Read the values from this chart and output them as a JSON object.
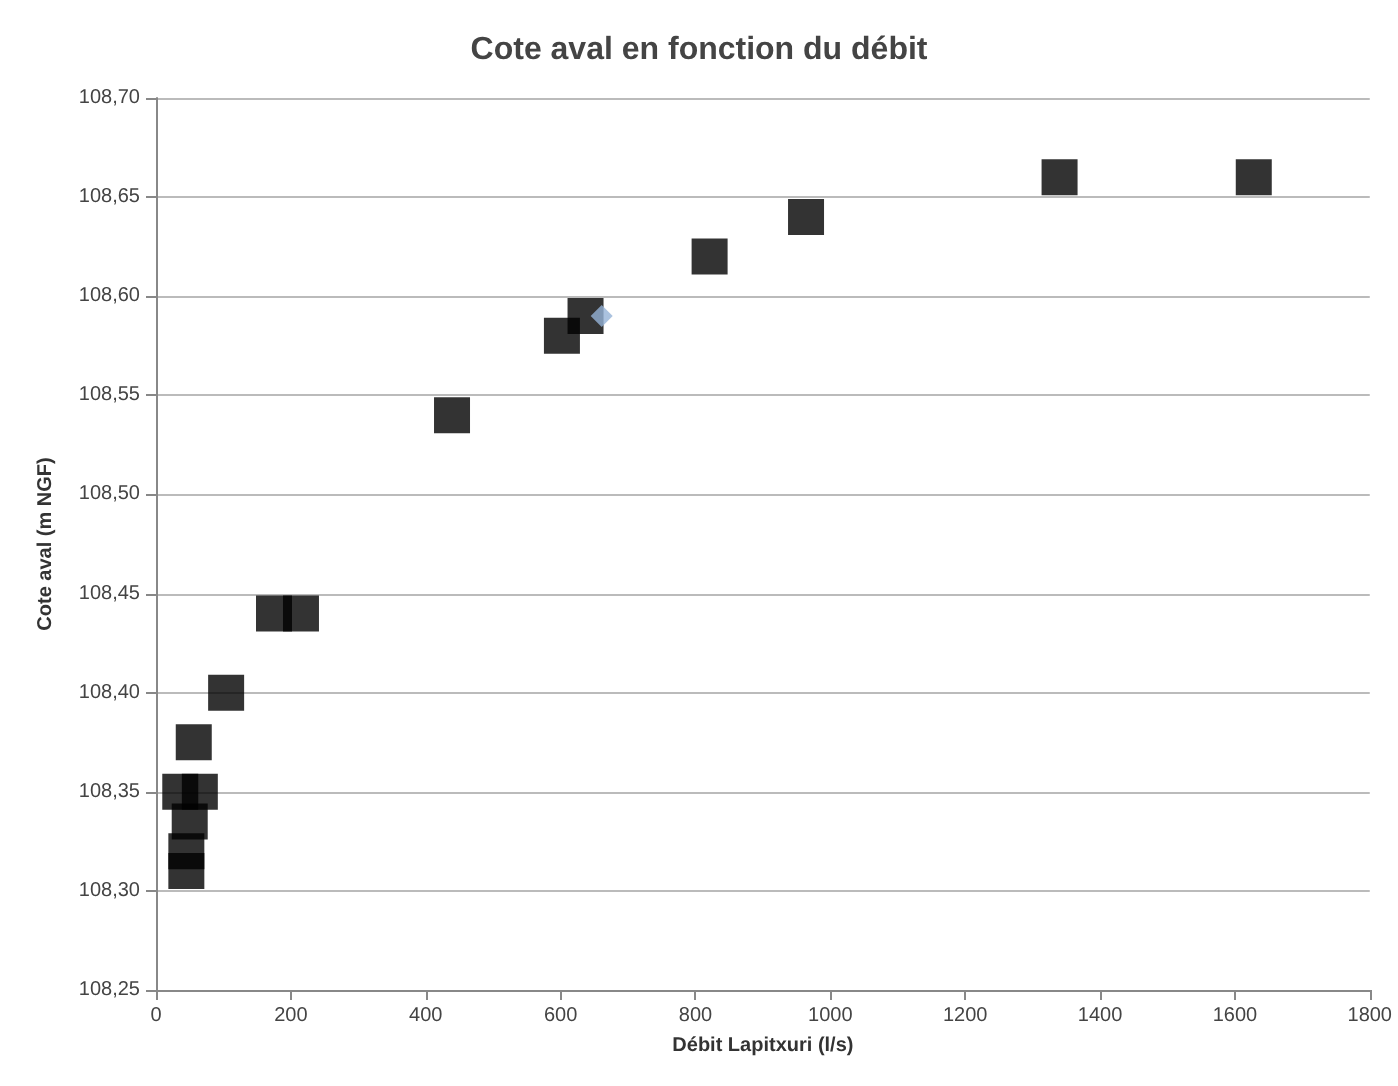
{
  "chart_data": {
    "type": "scatter",
    "title": "Cote aval en fonction du débit",
    "xlabel": "Débit Lapitxuri (l/s)",
    "ylabel": "Cote aval (m NGF)",
    "xlim": [
      0,
      1800
    ],
    "xticks": [
      0,
      200,
      400,
      600,
      800,
      1000,
      1200,
      1400,
      1600,
      1800
    ],
    "ylim": [
      108.25,
      108.7
    ],
    "yticks": [
      {
        "value": 108.25,
        "label": "108,25"
      },
      {
        "value": 108.3,
        "label": "108,30"
      },
      {
        "value": 108.35,
        "label": "108,35"
      },
      {
        "value": 108.4,
        "label": "108,40"
      },
      {
        "value": 108.45,
        "label": "108,45"
      },
      {
        "value": 108.5,
        "label": "108,50"
      },
      {
        "value": 108.55,
        "label": "108,55"
      },
      {
        "value": 108.6,
        "label": "108,60"
      },
      {
        "value": 108.65,
        "label": "108,65"
      },
      {
        "value": 108.7,
        "label": "108,70"
      }
    ],
    "grid": "y",
    "series": [
      {
        "color": "#000000",
        "marker": "square",
        "x": [
          1628,
          1340,
          964,
          821,
          637,
          602,
          439,
          215,
          175,
          104,
          56,
          36,
          65,
          50,
          45,
          45
        ],
        "values": [
          108.66,
          108.66,
          108.64,
          108.62,
          108.59,
          108.58,
          108.54,
          108.44,
          108.44,
          108.4,
          108.375,
          108.35,
          108.35,
          108.335,
          108.32,
          108.31
        ]
      },
      {
        "color": "#95b3d7",
        "marker": "diamond",
        "x": [
          661
        ],
        "values": [
          108.59
        ]
      }
    ]
  }
}
